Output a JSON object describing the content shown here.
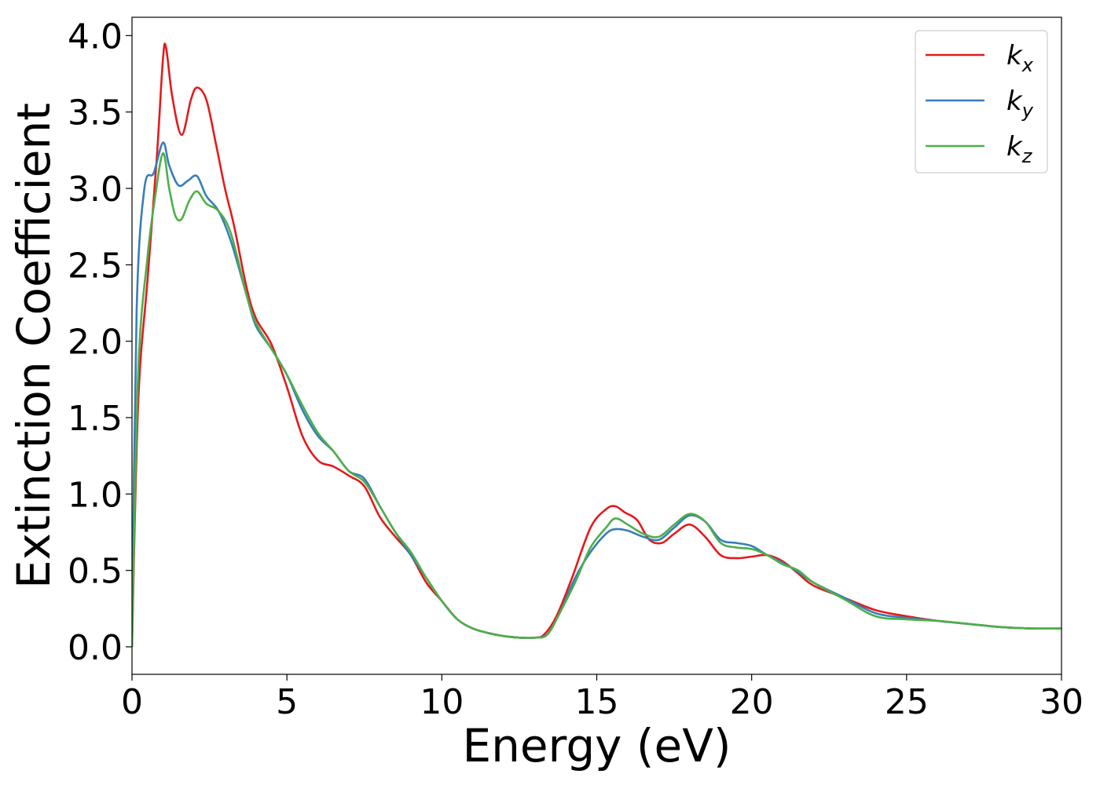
{
  "chart_data": {
    "type": "line",
    "title": "",
    "xlabel": "Energy (eV)",
    "ylabel": "Extinction Coefficient",
    "xlim": [
      0,
      30
    ],
    "ylim": [
      -0.18,
      4.12
    ],
    "xticks": [
      0,
      5,
      10,
      15,
      20,
      25,
      30
    ],
    "xtick_labels": [
      "0",
      "5",
      "10",
      "15",
      "20",
      "25",
      "30"
    ],
    "yticks": [
      0.0,
      0.5,
      1.0,
      1.5,
      2.0,
      2.5,
      3.0,
      3.5,
      4.0
    ],
    "ytick_labels": [
      "0.0",
      "0.5",
      "1.0",
      "1.5",
      "2.0",
      "2.5",
      "3.0",
      "3.5",
      "4.0"
    ],
    "grid": false,
    "legend_position": "top-right",
    "series": [
      {
        "name": "k_x",
        "label_main": "k",
        "label_sub": "x",
        "color": "#e41a1c",
        "x": [
          0,
          0.2,
          0.5,
          0.8,
          1.0,
          1.1,
          1.3,
          1.6,
          1.9,
          2.1,
          2.4,
          2.7,
          3.0,
          3.3,
          3.7,
          4.0,
          4.5,
          5.0,
          5.5,
          6.0,
          6.5,
          7.0,
          7.5,
          8.0,
          8.5,
          9.0,
          9.5,
          10.0,
          10.5,
          11.0,
          11.5,
          12.0,
          12.5,
          13.0,
          13.3,
          13.7,
          14.2,
          14.8,
          15.3,
          15.6,
          15.9,
          16.3,
          16.7,
          17.1,
          17.5,
          18.0,
          18.5,
          19.0,
          19.5,
          20.0,
          20.5,
          21.0,
          21.5,
          22.0,
          23.0,
          24.0,
          25.0,
          26.0,
          27.0,
          28.0,
          29.0,
          30.0
        ],
        "values": [
          0.0,
          1.6,
          2.4,
          3.2,
          3.85,
          3.92,
          3.6,
          3.35,
          3.58,
          3.66,
          3.58,
          3.3,
          3.0,
          2.75,
          2.35,
          2.15,
          1.98,
          1.7,
          1.38,
          1.22,
          1.18,
          1.12,
          1.05,
          0.85,
          0.72,
          0.6,
          0.42,
          0.3,
          0.18,
          0.12,
          0.09,
          0.07,
          0.06,
          0.06,
          0.08,
          0.2,
          0.45,
          0.78,
          0.9,
          0.92,
          0.88,
          0.83,
          0.7,
          0.68,
          0.74,
          0.8,
          0.72,
          0.6,
          0.58,
          0.59,
          0.6,
          0.56,
          0.48,
          0.4,
          0.32,
          0.24,
          0.2,
          0.17,
          0.15,
          0.13,
          0.12,
          0.12
        ]
      },
      {
        "name": "k_y",
        "label_main": "k",
        "label_sub": "y",
        "color": "#377eb8",
        "x": [
          0,
          0.15,
          0.4,
          0.7,
          1.0,
          1.2,
          1.5,
          1.8,
          2.1,
          2.4,
          2.8,
          3.2,
          3.7,
          4.0,
          4.5,
          5.0,
          5.5,
          6.0,
          6.5,
          7.0,
          7.5,
          8.0,
          8.5,
          9.0,
          9.5,
          10.0,
          10.5,
          11.0,
          11.5,
          12.0,
          12.5,
          13.0,
          13.4,
          13.8,
          14.3,
          14.8,
          15.3,
          15.6,
          16.0,
          16.5,
          17.0,
          17.5,
          18.0,
          18.5,
          19.0,
          19.5,
          20.0,
          20.5,
          21.0,
          21.5,
          22.0,
          23.0,
          24.0,
          25.0,
          26.0,
          27.0,
          28.0,
          29.0,
          30.0
        ],
        "values": [
          0.0,
          2.2,
          3.0,
          3.1,
          3.3,
          3.15,
          3.02,
          3.05,
          3.08,
          2.95,
          2.85,
          2.65,
          2.3,
          2.1,
          1.95,
          1.78,
          1.55,
          1.38,
          1.28,
          1.15,
          1.1,
          0.92,
          0.75,
          0.6,
          0.45,
          0.3,
          0.18,
          0.12,
          0.09,
          0.07,
          0.06,
          0.06,
          0.08,
          0.22,
          0.45,
          0.62,
          0.74,
          0.77,
          0.76,
          0.72,
          0.7,
          0.78,
          0.86,
          0.82,
          0.7,
          0.68,
          0.66,
          0.6,
          0.55,
          0.49,
          0.42,
          0.32,
          0.22,
          0.19,
          0.17,
          0.15,
          0.13,
          0.12,
          0.12
        ]
      },
      {
        "name": "k_z",
        "label_main": "k",
        "label_sub": "z",
        "color": "#4daf4a",
        "x": [
          0,
          0.2,
          0.5,
          0.75,
          1.0,
          1.2,
          1.4,
          1.6,
          1.85,
          2.1,
          2.4,
          2.8,
          3.2,
          3.7,
          4.0,
          4.5,
          5.0,
          5.5,
          6.0,
          6.5,
          7.0,
          7.5,
          8.0,
          8.5,
          9.0,
          9.5,
          10.0,
          10.5,
          11.0,
          11.5,
          12.0,
          12.5,
          13.0,
          13.4,
          13.8,
          14.3,
          14.8,
          15.3,
          15.6,
          16.0,
          16.5,
          17.0,
          17.5,
          18.0,
          18.5,
          19.0,
          19.5,
          20.0,
          20.5,
          21.0,
          21.5,
          22.0,
          23.0,
          24.0,
          25.0,
          26.0,
          27.0,
          28.0,
          29.0,
          30.0
        ],
        "values": [
          0.0,
          1.8,
          2.55,
          2.95,
          3.23,
          3.0,
          2.82,
          2.8,
          2.92,
          2.98,
          2.9,
          2.85,
          2.7,
          2.3,
          2.12,
          1.95,
          1.78,
          1.58,
          1.4,
          1.28,
          1.15,
          1.08,
          0.92,
          0.75,
          0.62,
          0.45,
          0.3,
          0.18,
          0.12,
          0.09,
          0.07,
          0.06,
          0.06,
          0.08,
          0.22,
          0.42,
          0.65,
          0.78,
          0.84,
          0.8,
          0.74,
          0.72,
          0.8,
          0.87,
          0.82,
          0.68,
          0.65,
          0.64,
          0.6,
          0.54,
          0.5,
          0.42,
          0.31,
          0.2,
          0.18,
          0.17,
          0.15,
          0.13,
          0.12,
          0.12
        ]
      }
    ]
  }
}
